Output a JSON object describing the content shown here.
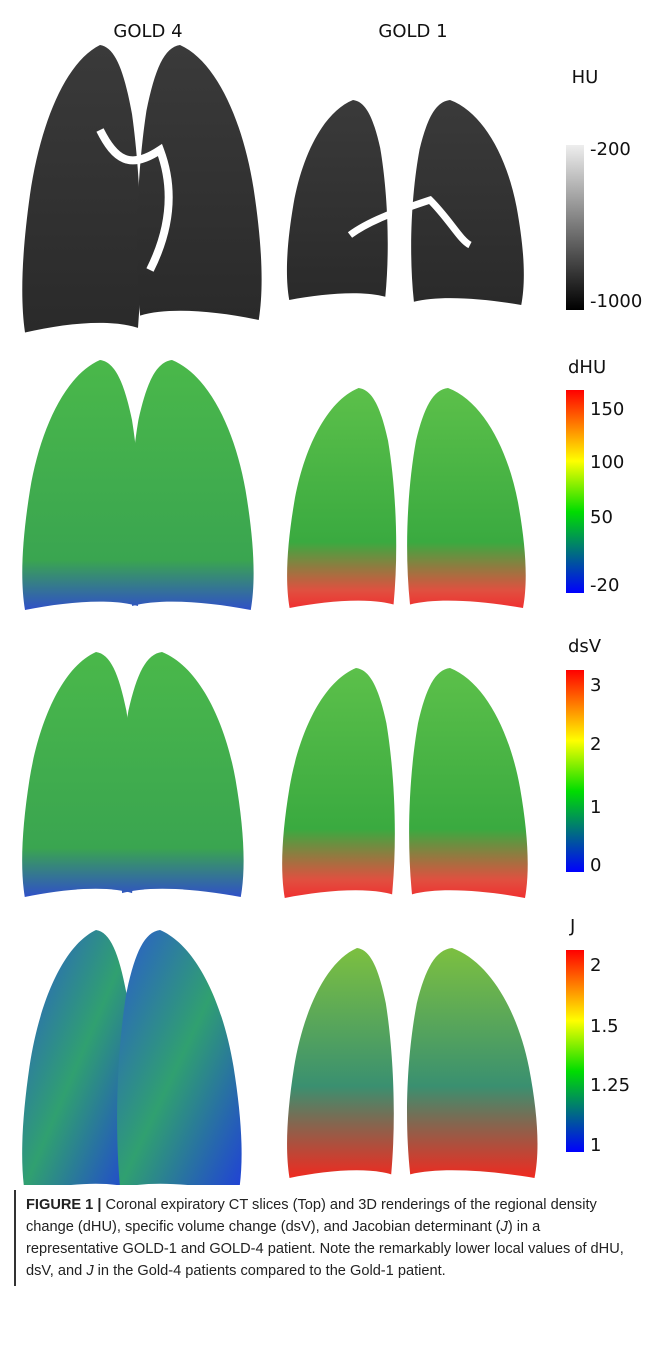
{
  "columns": [
    "GOLD 4",
    "GOLD 1"
  ],
  "panels": [
    {
      "colorbar": {
        "label": "HU",
        "ticks": [
          -200,
          -1000
        ]
      }
    },
    {
      "colorbar": {
        "label": "dHU",
        "ticks": [
          150,
          100,
          50,
          -20
        ]
      }
    },
    {
      "colorbar": {
        "label": "dsV",
        "ticks": [
          3,
          2,
          1,
          0
        ]
      }
    },
    {
      "colorbar": {
        "label": "J",
        "ticks": [
          2,
          1.5,
          1.25,
          1
        ]
      }
    }
  ],
  "caption": {
    "label": "FIGURE 1 |",
    "text": [
      "Coronal expiratory CT slices (Top) and 3D renderings of the regional density change (dHU), specific volume change (dsV), and Jacobian determinant (",
      "J",
      ") in a representative GOLD-1 and GOLD-4 patient. Note the remarkably lower local values of dHU, dsV, and ",
      "J",
      " in the Gold-4 patients compared to the Gold-1 patient."
    ]
  }
}
